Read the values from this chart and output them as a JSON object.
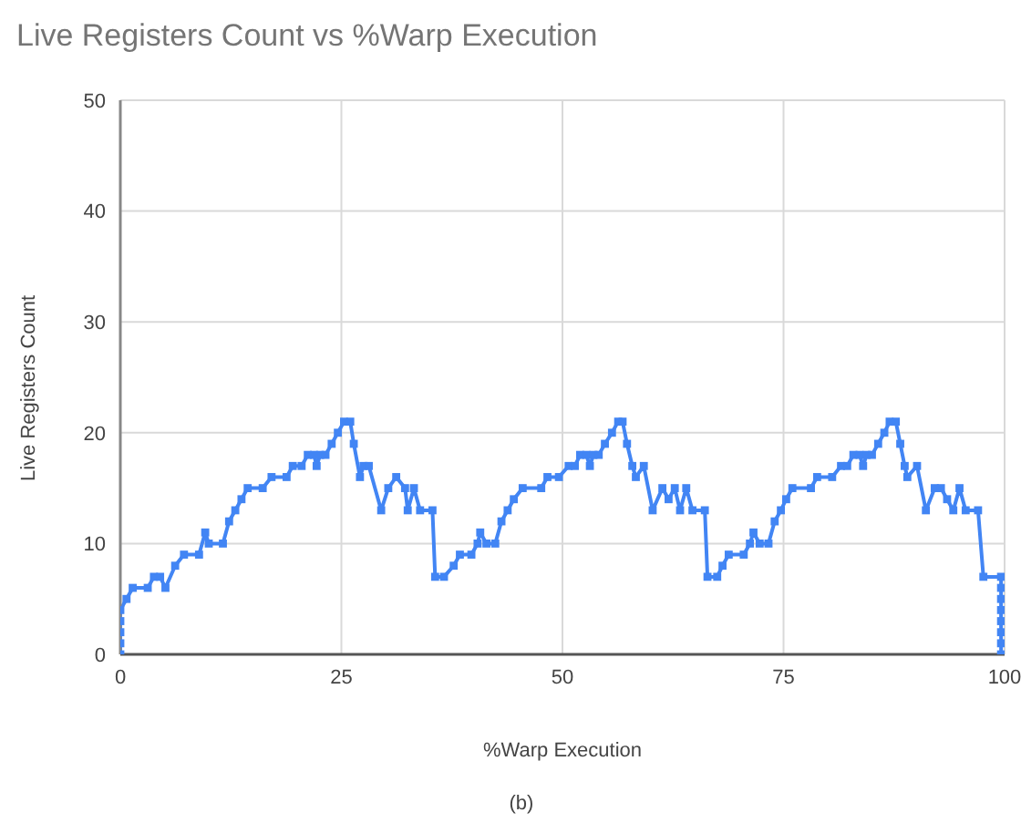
{
  "chart_data": {
    "type": "line",
    "title": "Live Registers Count vs %Warp Execution",
    "xlabel": "%Warp Execution",
    "ylabel": "Live Registers Count",
    "annotations": [
      "(b)"
    ],
    "x": [
      0,
      0,
      0,
      0,
      0,
      0.7,
      1.4,
      3.1,
      3.8,
      4.5,
      5.1,
      6.2,
      7.2,
      8.9,
      9.6,
      10,
      11.6,
      12.3,
      13,
      13.7,
      14.4,
      16.1,
      17.1,
      18.8,
      19.5,
      20.5,
      21.2,
      21.9,
      22.2,
      22.6,
      23.2,
      23.9,
      24.6,
      25.3,
      26,
      26.4,
      27.1,
      27.5,
      28.1,
      29.5,
      30.3,
      31.2,
      32.2,
      32.5,
      33.2,
      33.9,
      35.3,
      35.6,
      36.6,
      37.7,
      38.4,
      39.7,
      40.4,
      40.7,
      41.4,
      42.4,
      43.1,
      43.8,
      44.5,
      45.5,
      47.6,
      48.3,
      49.6,
      50.7,
      51.4,
      52,
      52.7,
      53.1,
      53.5,
      54.1,
      54.8,
      55.6,
      56.3,
      56.8,
      57.3,
      57.9,
      58.3,
      59.2,
      60.2,
      61.3,
      62,
      62.7,
      63.3,
      64,
      64.7,
      66.1,
      66.4,
      67.5,
      68.1,
      68.8,
      70.5,
      71.2,
      71.6,
      72.3,
      73.3,
      74,
      74.7,
      75.3,
      76,
      78.1,
      78.8,
      80.5,
      81.5,
      82.2,
      82.9,
      83.6,
      84,
      84.4,
      85,
      85.7,
      86.4,
      87,
      87.7,
      88.2,
      88.7,
      89,
      90.1,
      91.1,
      92.1,
      92.8,
      93.5,
      94.2,
      94.9,
      95.6,
      97,
      97.6,
      99.6,
      99.6,
      99.6,
      99.6,
      99.6,
      99.6,
      99.6,
      99.6
    ],
    "series": [
      {
        "color": "#4285f4",
        "values": [
          0,
          1,
          2,
          3,
          4,
          5,
          6,
          6,
          7,
          7,
          6,
          8,
          9,
          9,
          11,
          10,
          10,
          12,
          13,
          14,
          15,
          15,
          16,
          16,
          17,
          17,
          18,
          18,
          17,
          18,
          18,
          19,
          20,
          21,
          21,
          19,
          16,
          17,
          17,
          13,
          15,
          16,
          15,
          13,
          15,
          13,
          13,
          7,
          7,
          8,
          9,
          9,
          10,
          11,
          10,
          10,
          12,
          13,
          14,
          15,
          15,
          16,
          16,
          17,
          17,
          18,
          18,
          17,
          18,
          18,
          19,
          20,
          21,
          21,
          19,
          17,
          16,
          17,
          13,
          15,
          14,
          15,
          13,
          15,
          13,
          13,
          7,
          7,
          8,
          9,
          9,
          10,
          11,
          10,
          10,
          12,
          13,
          14,
          15,
          15,
          16,
          16,
          17,
          17,
          18,
          18,
          17,
          18,
          18,
          19,
          20,
          21,
          21,
          19,
          17,
          16,
          17,
          13,
          15,
          15,
          14,
          13,
          15,
          13,
          13,
          7,
          7,
          6,
          5,
          4,
          3,
          2,
          1,
          0
        ]
      }
    ],
    "xlim": [
      0,
      100
    ],
    "xticks": [
      0,
      25,
      50,
      75,
      100
    ],
    "ylim": [
      0,
      50
    ],
    "yticks": [
      0,
      10,
      20,
      30,
      40,
      50
    ],
    "grid": true,
    "marker": "square",
    "line_style": "solid"
  }
}
